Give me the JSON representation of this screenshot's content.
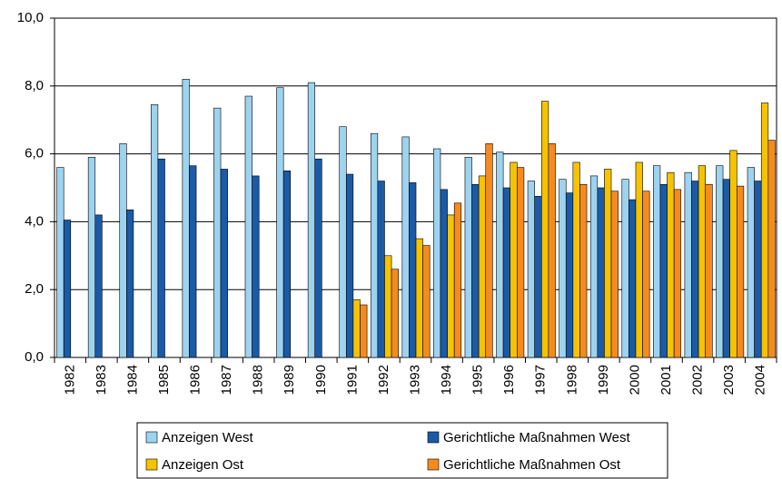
{
  "chart_data": {
    "type": "bar",
    "categories": [
      "1982",
      "1983",
      "1984",
      "1985",
      "1986",
      "1987",
      "1988",
      "1989",
      "1990",
      "1991",
      "1992",
      "1993",
      "1994",
      "1995",
      "1996",
      "1997",
      "1998",
      "1999",
      "2000",
      "2001",
      "2002",
      "2003",
      "2004"
    ],
    "series": [
      {
        "name": "Anzeigen West",
        "color": "#9dd3ef",
        "values": [
          5.6,
          5.9,
          6.3,
          7.45,
          8.2,
          7.35,
          7.7,
          7.95,
          8.1,
          6.8,
          6.6,
          6.5,
          6.15,
          5.9,
          6.05,
          5.2,
          5.25,
          5.35,
          5.25,
          5.65,
          5.45,
          5.65,
          5.6
        ]
      },
      {
        "name": "Gerichtliche Maßnahmen West",
        "color": "#1b5aa6",
        "values": [
          4.05,
          4.2,
          4.35,
          5.85,
          5.65,
          5.55,
          5.35,
          5.5,
          5.85,
          5.4,
          5.2,
          5.15,
          4.95,
          5.1,
          5.0,
          4.75,
          4.85,
          5.0,
          4.65,
          5.1,
          5.2,
          5.25,
          5.2
        ]
      },
      {
        "name": "Anzeigen Ost",
        "color": "#f5c300",
        "values": [
          null,
          null,
          null,
          null,
          null,
          null,
          null,
          null,
          null,
          1.7,
          3.0,
          3.5,
          4.2,
          5.35,
          5.75,
          7.55,
          5.75,
          5.55,
          5.75,
          5.45,
          5.65,
          6.1,
          7.5
        ]
      },
      {
        "name": "Gerichtliche Maßnahmen Ost",
        "color": "#f58b1f",
        "values": [
          null,
          null,
          null,
          null,
          null,
          null,
          null,
          null,
          null,
          1.55,
          2.6,
          3.3,
          4.55,
          6.3,
          5.6,
          6.3,
          5.1,
          4.9,
          4.9,
          4.95,
          5.1,
          5.05,
          6.4
        ]
      }
    ],
    "ylim": [
      0,
      10
    ],
    "yticks": [
      {
        "value": 0,
        "label": "0,0"
      },
      {
        "value": 2,
        "label": "2,0"
      },
      {
        "value": 4,
        "label": "4,0"
      },
      {
        "value": 6,
        "label": "6,0"
      },
      {
        "value": 8,
        "label": "8,0"
      },
      {
        "value": 10,
        "label": "10,0"
      }
    ],
    "grid": true,
    "legend": "bottom"
  }
}
